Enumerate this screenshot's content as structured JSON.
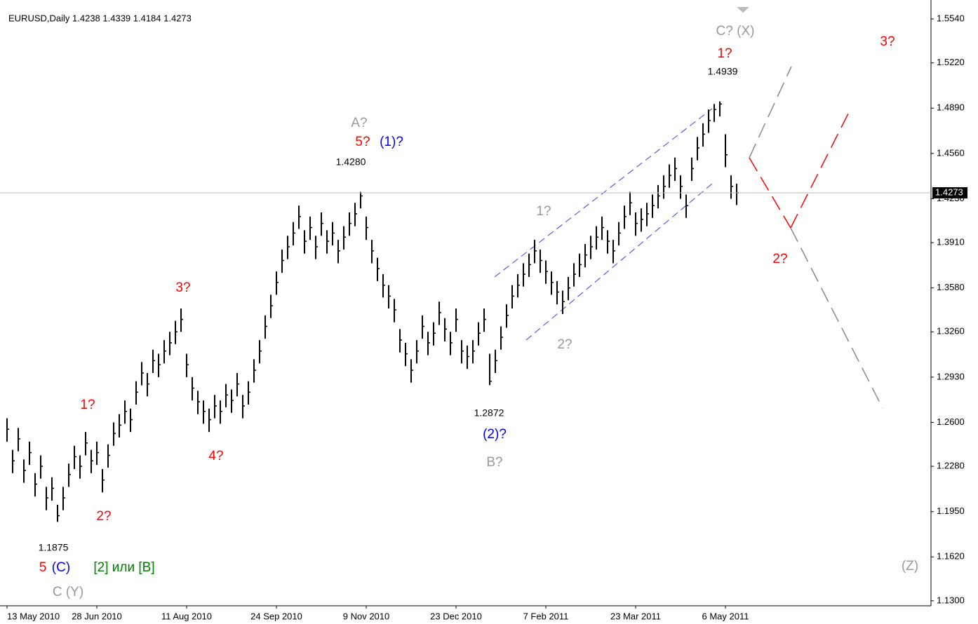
{
  "chart_data": {
    "type": "hlc",
    "title": "EURUSD,Daily  1.4238 1.4339 1.4184 1.4273",
    "color": "#000000",
    "high": [
      1.263,
      1.24,
      1.256,
      1.233,
      1.246,
      1.223,
      1.236,
      1.213,
      1.22,
      1.2,
      1.213,
      1.23,
      1.243,
      1.236,
      1.253,
      1.24,
      1.246,
      1.226,
      1.244,
      1.26,
      1.266,
      1.276,
      1.27,
      1.29,
      1.304,
      1.296,
      1.313,
      1.31,
      1.32,
      1.326,
      1.334,
      1.343,
      1.31,
      1.293,
      1.283,
      1.276,
      1.27,
      1.28,
      1.276,
      1.288,
      1.284,
      1.296,
      1.28,
      1.29,
      1.306,
      1.32,
      1.338,
      1.353,
      1.37,
      1.386,
      1.396,
      1.406,
      1.418,
      1.4,
      1.41,
      1.396,
      1.413,
      1.4,
      1.406,
      1.393,
      1.403,
      1.413,
      1.42,
      1.428,
      1.41,
      1.393,
      1.38,
      1.368,
      1.36,
      1.35,
      1.328,
      1.318,
      1.306,
      1.32,
      1.338,
      1.326,
      1.333,
      1.348,
      1.336,
      1.326,
      1.343,
      1.32,
      1.316,
      1.32,
      1.333,
      1.343,
      1.31,
      1.313,
      1.33,
      1.346,
      1.36,
      1.368,
      1.376,
      1.383,
      1.393,
      1.386,
      1.378,
      1.37,
      1.363,
      1.356,
      1.366,
      1.376,
      1.383,
      1.39,
      1.396,
      1.403,
      1.41,
      1.4,
      1.393,
      1.406,
      1.418,
      1.428,
      1.413,
      1.416,
      1.42,
      1.426,
      1.433,
      1.44,
      1.448,
      1.453,
      1.44,
      1.426,
      1.453,
      1.468,
      1.478,
      1.488,
      1.492,
      1.4939,
      1.47,
      1.44,
      1.4339
    ],
    "low": [
      1.246,
      1.223,
      1.239,
      1.216,
      1.229,
      1.206,
      1.219,
      1.196,
      1.203,
      1.1875,
      1.196,
      1.213,
      1.226,
      1.219,
      1.236,
      1.223,
      1.229,
      1.209,
      1.227,
      1.243,
      1.249,
      1.259,
      1.253,
      1.273,
      1.287,
      1.279,
      1.296,
      1.293,
      1.303,
      1.309,
      1.317,
      1.326,
      1.293,
      1.276,
      1.266,
      1.259,
      1.253,
      1.263,
      1.259,
      1.271,
      1.267,
      1.279,
      1.263,
      1.273,
      1.289,
      1.303,
      1.321,
      1.336,
      1.353,
      1.369,
      1.379,
      1.389,
      1.401,
      1.383,
      1.393,
      1.379,
      1.396,
      1.383,
      1.389,
      1.376,
      1.386,
      1.396,
      1.403,
      1.416,
      1.393,
      1.376,
      1.363,
      1.351,
      1.343,
      1.333,
      1.311,
      1.301,
      1.289,
      1.303,
      1.321,
      1.309,
      1.316,
      1.331,
      1.319,
      1.309,
      1.326,
      1.303,
      1.299,
      1.303,
      1.316,
      1.326,
      1.2872,
      1.296,
      1.313,
      1.329,
      1.343,
      1.351,
      1.359,
      1.366,
      1.376,
      1.369,
      1.361,
      1.353,
      1.346,
      1.339,
      1.349,
      1.359,
      1.366,
      1.373,
      1.379,
      1.386,
      1.393,
      1.383,
      1.376,
      1.389,
      1.401,
      1.411,
      1.396,
      1.399,
      1.403,
      1.409,
      1.416,
      1.423,
      1.431,
      1.436,
      1.423,
      1.409,
      1.436,
      1.451,
      1.461,
      1.471,
      1.479,
      1.483,
      1.446,
      1.423,
      1.4184
    ],
    "close": [
      1.255,
      1.232,
      1.248,
      1.225,
      1.238,
      1.215,
      1.228,
      1.205,
      1.212,
      1.192,
      1.205,
      1.222,
      1.235,
      1.228,
      1.245,
      1.232,
      1.238,
      1.218,
      1.236,
      1.252,
      1.258,
      1.268,
      1.262,
      1.282,
      1.296,
      1.288,
      1.305,
      1.302,
      1.312,
      1.318,
      1.326,
      1.335,
      1.302,
      1.285,
      1.275,
      1.268,
      1.262,
      1.272,
      1.268,
      1.28,
      1.276,
      1.288,
      1.272,
      1.282,
      1.298,
      1.312,
      1.33,
      1.345,
      1.362,
      1.378,
      1.388,
      1.398,
      1.41,
      1.392,
      1.402,
      1.388,
      1.405,
      1.392,
      1.398,
      1.385,
      1.395,
      1.405,
      1.412,
      1.425,
      1.402,
      1.385,
      1.372,
      1.36,
      1.352,
      1.342,
      1.32,
      1.31,
      1.298,
      1.312,
      1.33,
      1.318,
      1.325,
      1.34,
      1.328,
      1.318,
      1.335,
      1.312,
      1.308,
      1.312,
      1.325,
      1.335,
      1.29,
      1.305,
      1.322,
      1.338,
      1.352,
      1.36,
      1.368,
      1.375,
      1.385,
      1.378,
      1.37,
      1.362,
      1.355,
      1.348,
      1.358,
      1.368,
      1.375,
      1.382,
      1.388,
      1.395,
      1.402,
      1.392,
      1.385,
      1.398,
      1.41,
      1.42,
      1.405,
      1.408,
      1.412,
      1.418,
      1.425,
      1.432,
      1.44,
      1.445,
      1.432,
      1.418,
      1.445,
      1.46,
      1.47,
      1.48,
      1.488,
      1.492,
      1.455,
      1.432,
      1.4273
    ],
    "ylim": [
      1.1274,
      1.5627
    ],
    "yticks": [
      {
        "value": 1.554,
        "label": "1.5540"
      },
      {
        "value": 1.522,
        "label": "1.5220"
      },
      {
        "value": 1.489,
        "label": "1.4890"
      },
      {
        "value": 1.456,
        "label": "1.4560"
      },
      {
        "value": 1.423,
        "label": "1.4230"
      },
      {
        "value": 1.391,
        "label": "1.3910"
      },
      {
        "value": 1.358,
        "label": "1.3580"
      },
      {
        "value": 1.326,
        "label": "1.3260"
      },
      {
        "value": 1.293,
        "label": "1.2930"
      },
      {
        "value": 1.26,
        "label": "1.2600"
      },
      {
        "value": 1.228,
        "label": "1.2280"
      },
      {
        "value": 1.195,
        "label": "1.1950"
      },
      {
        "value": 1.162,
        "label": "1.1620"
      },
      {
        "value": 1.13,
        "label": "1.1300"
      }
    ],
    "xticks": [
      {
        "value": 0,
        "label": "13 May 2010"
      },
      {
        "value": 16,
        "label": "28 Jun 2010"
      },
      {
        "value": 32,
        "label": "11 Aug 2010"
      },
      {
        "value": 48,
        "label": "24 Sep 2010"
      },
      {
        "value": 64,
        "label": "9 Nov 2010"
      },
      {
        "value": 80,
        "label": "23 Dec 2010"
      },
      {
        "value": 96,
        "label": "7 Feb 2011"
      },
      {
        "value": 112,
        "label": "23 Mar 2011"
      },
      {
        "value": 128,
        "label": "6 May 2011"
      }
    ],
    "annotations": [
      "C? (X)",
      "1?",
      "1.4939",
      "3?",
      "A?",
      "5?",
      "(1)?",
      "1.4280",
      "3?",
      "1?",
      "2?",
      "4?",
      "1.1875",
      "5",
      "(C)",
      "[2] или [B]",
      "C (Y)",
      "1?",
      "2?",
      "1.2872",
      "(2)?",
      "B?",
      "2?",
      "(Z)"
    ]
  }
}
